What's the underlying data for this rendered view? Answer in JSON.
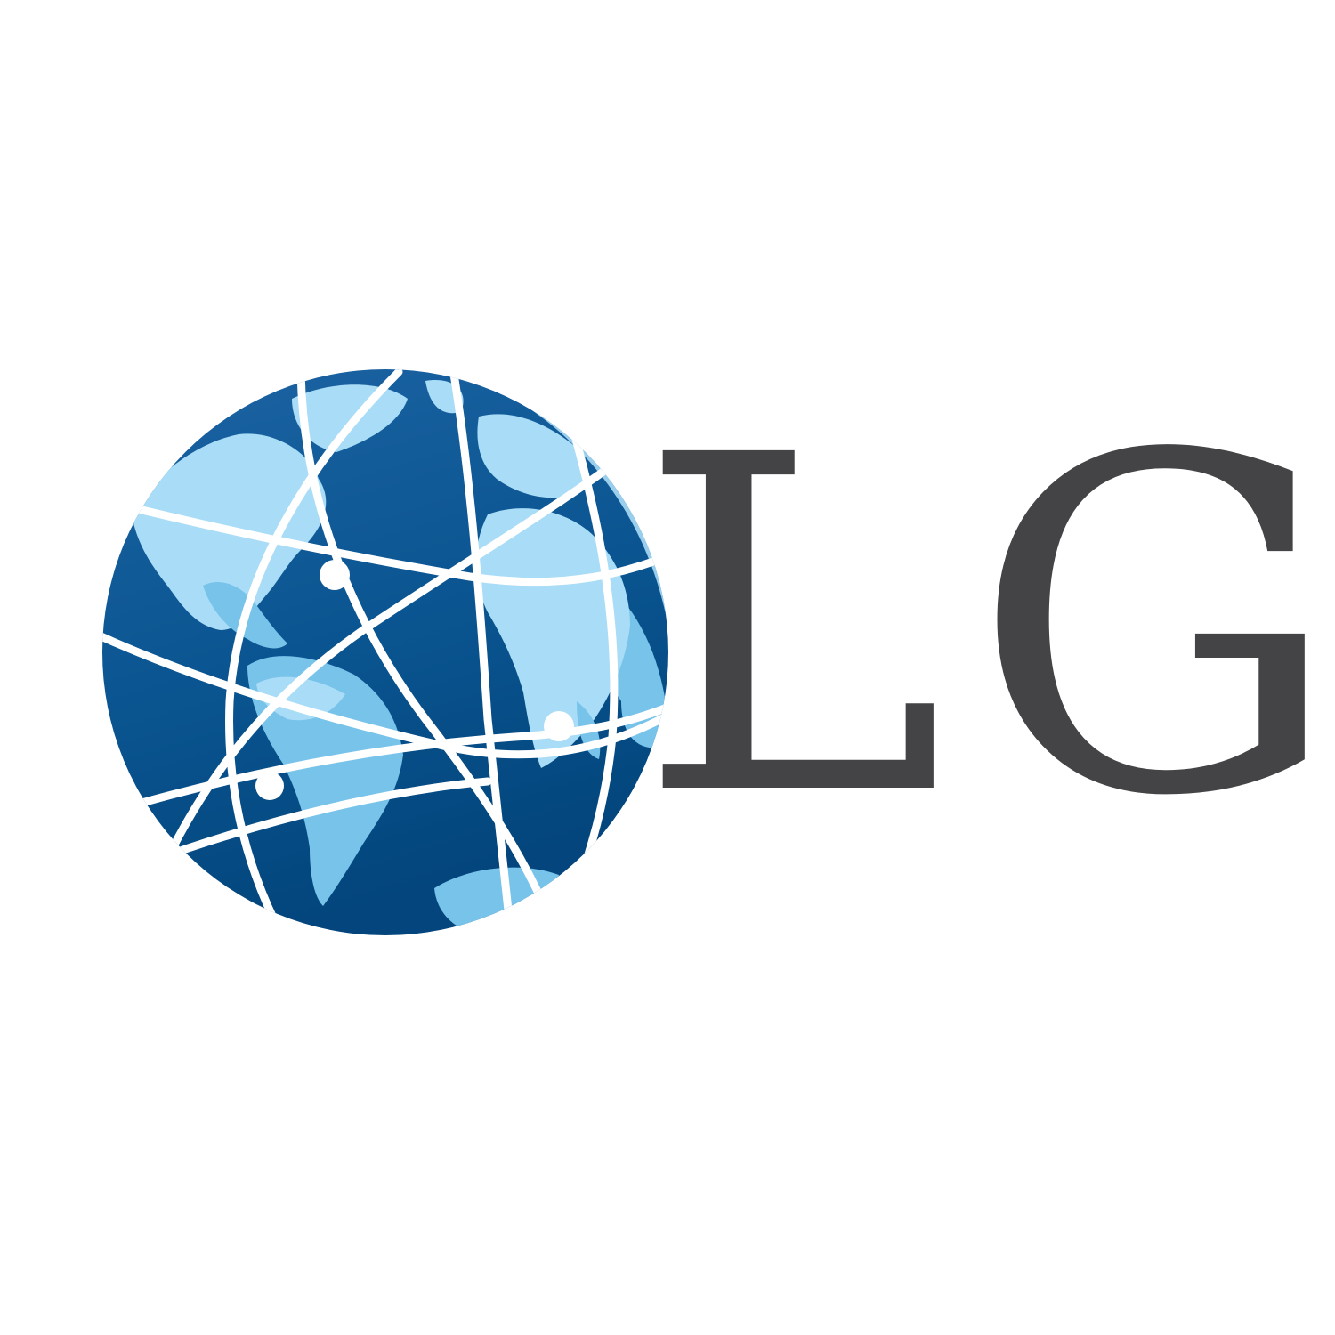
{
  "logo": {
    "wordmark": "LG",
    "icon": "globe-icon",
    "colors": {
      "ocean_dark": "#03457c",
      "ocean_mid": "#1c63a3",
      "land_light": "#a9dcf6",
      "land_mid": "#78c3ea",
      "grid_lines": "#ffffff",
      "wordmark_text": "#444446",
      "background": "#ffffff"
    }
  }
}
